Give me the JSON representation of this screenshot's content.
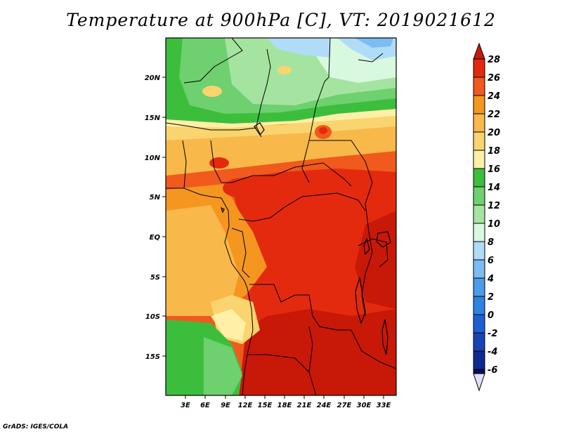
{
  "title": "Temperature at 900hPa [C], VT: 2019021612",
  "credit": "GrADS: IGES/COLA",
  "axes": {
    "lat_ticks": [
      "20N",
      "15N",
      "10N",
      "5N",
      "EQ",
      "5S",
      "10S",
      "15S"
    ],
    "lon_ticks": [
      "3E",
      "6E",
      "9E",
      "12E",
      "15E",
      "18E",
      "21E",
      "24E",
      "27E",
      "30E",
      "33E"
    ]
  },
  "colorbar": {
    "labels": [
      "28",
      "26",
      "24",
      "22",
      "20",
      "18",
      "16",
      "14",
      "12",
      "10",
      "8",
      "6",
      "4",
      "2",
      "0",
      "-2",
      "-4",
      "-6"
    ],
    "colors": {
      "above": "#c81808",
      "b26_28": "#e32a0e",
      "b24_26": "#f05a1c",
      "b22_24": "#f59620",
      "b20_22": "#f8b84a",
      "b18_20": "#fad46e",
      "b16_18": "#fff0a8",
      "b14_16": "#3cbe3c",
      "b12_14": "#6ed06e",
      "b10_12": "#a4e4a0",
      "b8_10": "#d8f8e0",
      "b6_8": "#b0dcf8",
      "b4_6": "#7cbcf0",
      "b2_4": "#4a9ce8",
      "b0_2": "#2e82e0",
      "bm2_0": "#1e60d2",
      "bm4_m2": "#1844b4",
      "bm6_m4": "#0e2a90",
      "below": "#080c60",
      "under": "#e0e0f8"
    }
  }
}
